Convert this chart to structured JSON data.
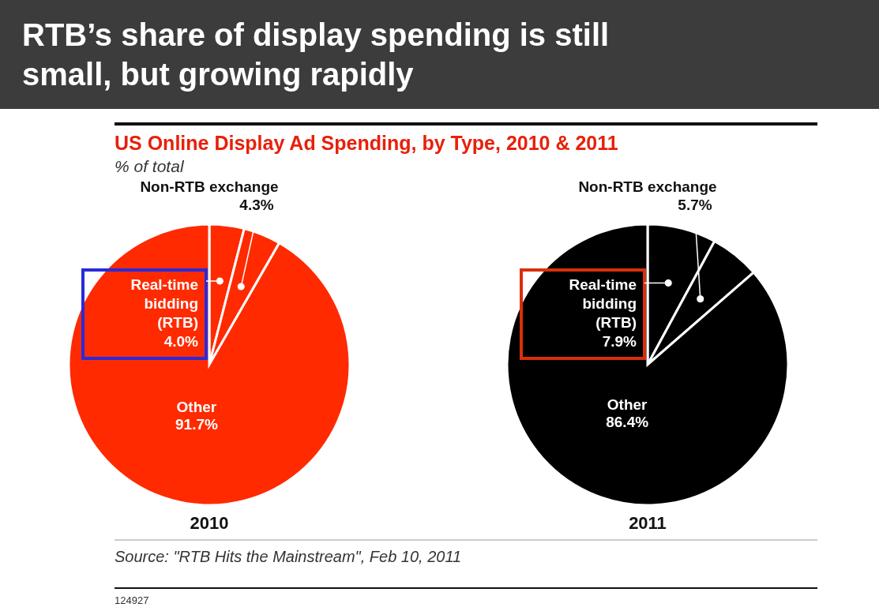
{
  "chart_data": [
    {
      "type": "pie",
      "title": "RTB’s share of display spending is still small, but growing rapidly",
      "subtitle": "US Online Display Ad Spending, by Type, 2010 & 2011",
      "xlabel": "2010",
      "categories": [
        "Real-time bidding (RTB)",
        "Non-RTB exchange",
        "Other"
      ],
      "values": [
        4.0,
        4.3,
        91.7
      ],
      "value_labels": [
        "4.0%",
        "4.3%",
        "91.7%"
      ],
      "colors": [
        "#ff2a00",
        "#ff2a00",
        "#ff2a00"
      ],
      "annotations": [
        "% of total",
        "Source: \"RTB Hits the Mainstream\", Feb 10, 2011",
        "124927"
      ]
    },
    {
      "type": "pie",
      "xlabel": "2011",
      "categories": [
        "Real-time bidding (RTB)",
        "Non-RTB exchange",
        "Other"
      ],
      "values": [
        7.9,
        5.7,
        86.4
      ],
      "value_labels": [
        "7.9%",
        "5.7%",
        "86.4%"
      ],
      "colors": [
        "#000000",
        "#000000",
        "#000000"
      ]
    }
  ]
}
